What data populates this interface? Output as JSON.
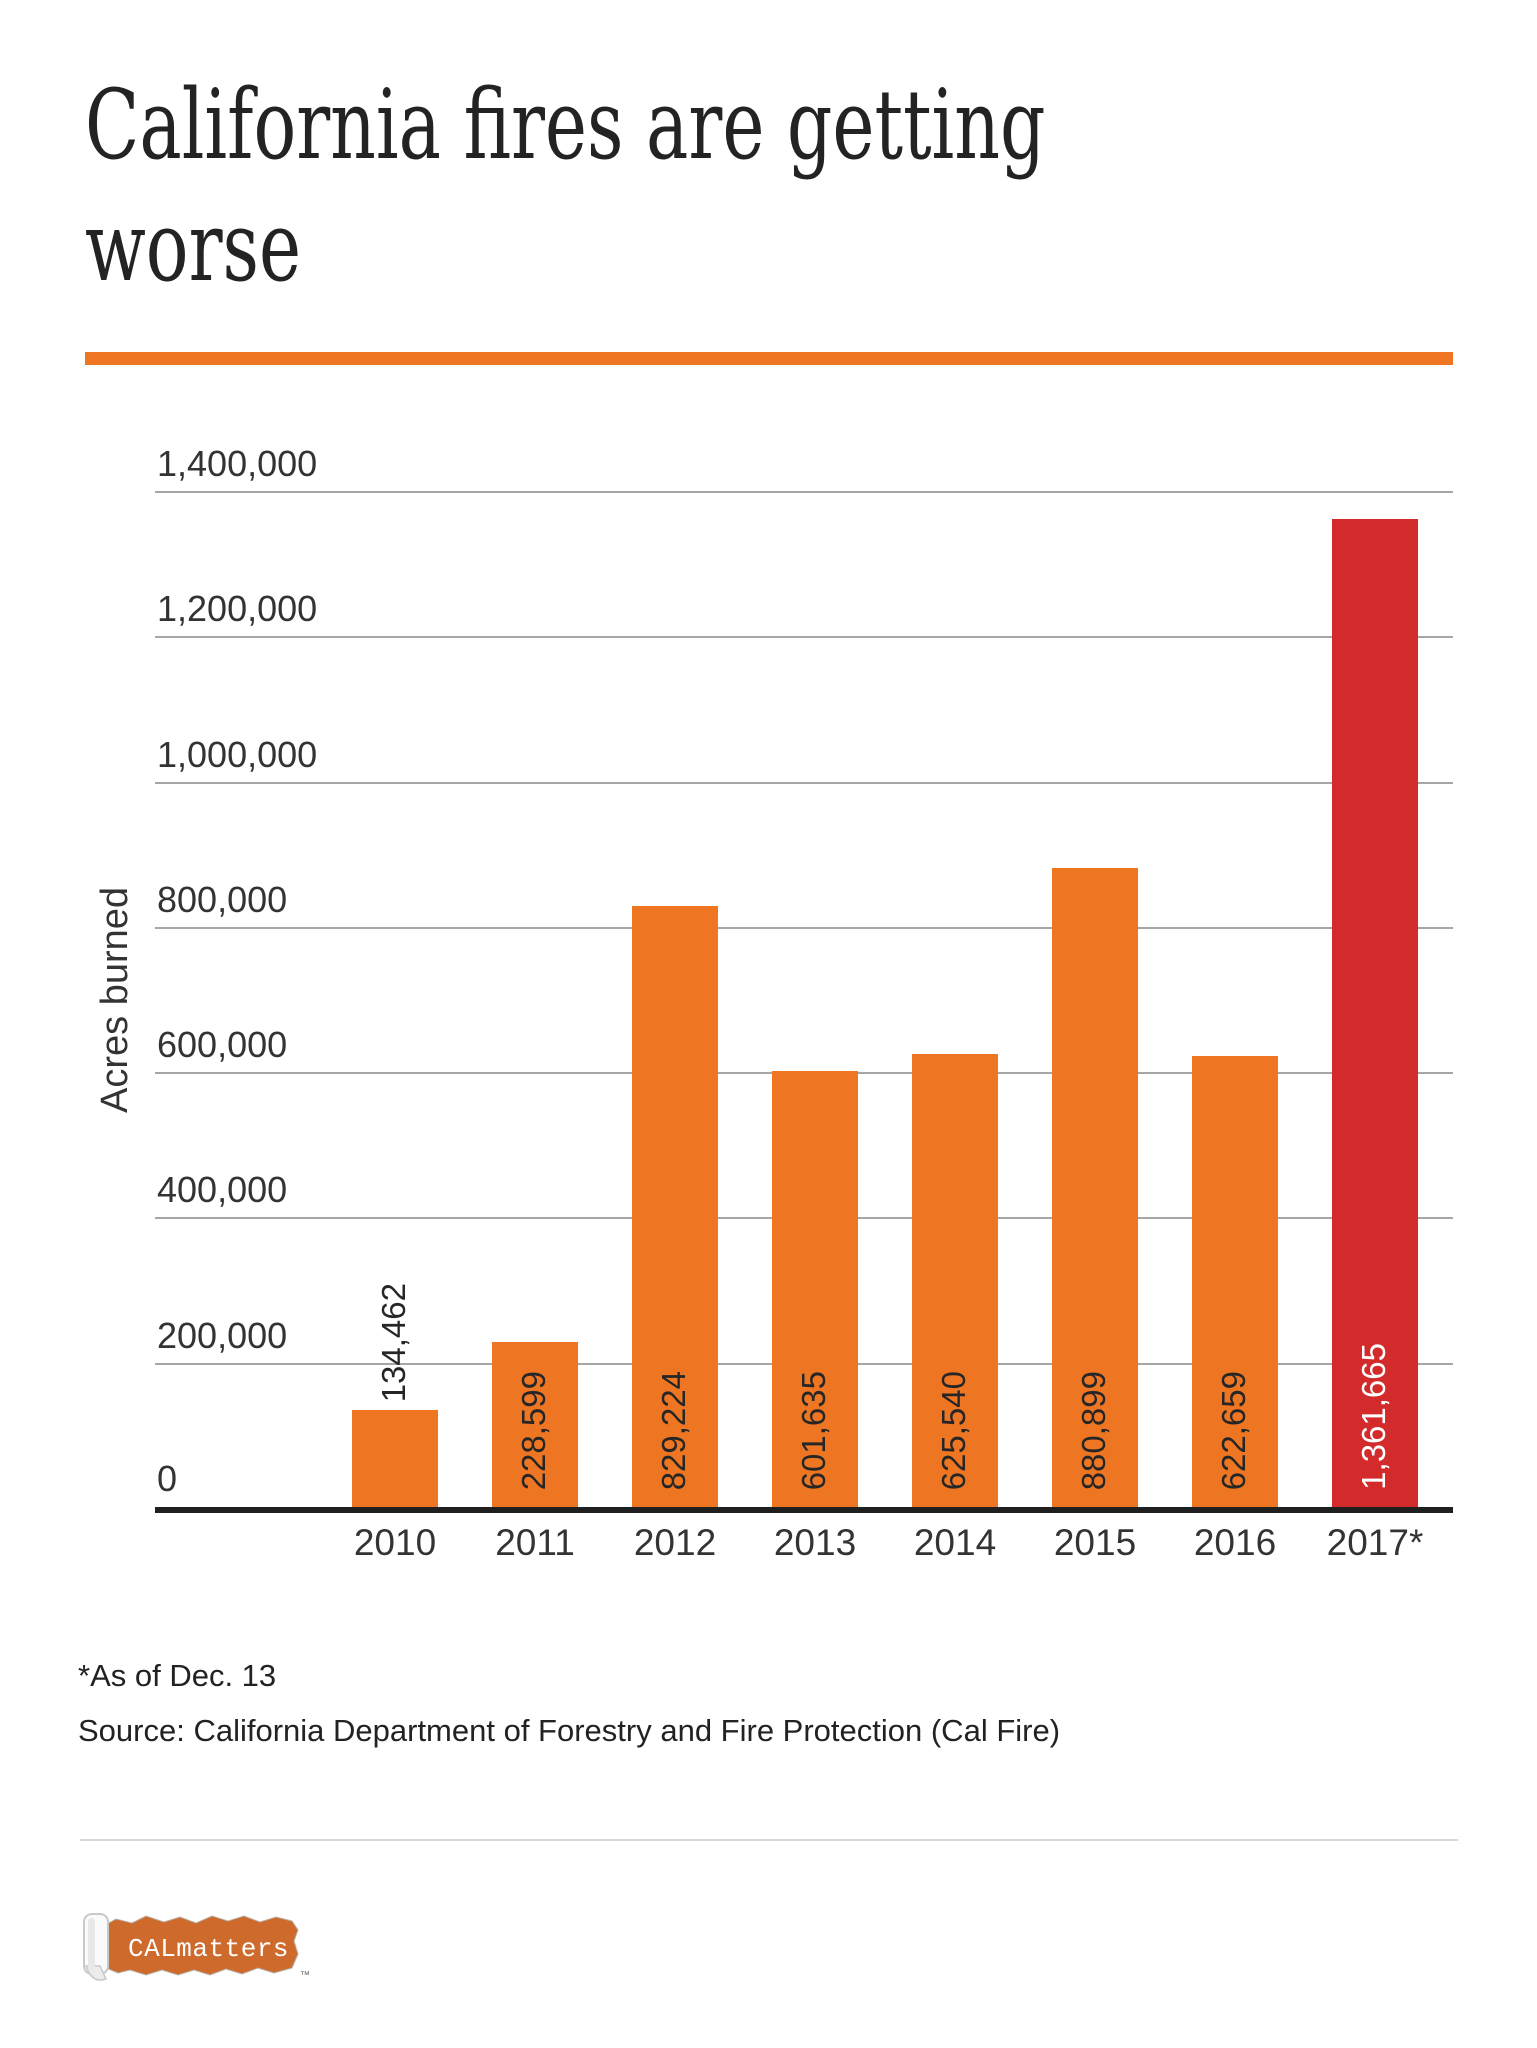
{
  "header": {
    "title": "California fires are getting worse",
    "title_lines": [
      "California fires are getting",
      "worse"
    ]
  },
  "accent_color": "#ee7623",
  "chart_data": {
    "type": "bar",
    "title": "California fires are getting worse",
    "categories": [
      "2010",
      "2011",
      "2012",
      "2013",
      "2014",
      "2015",
      "2016",
      "2017*"
    ],
    "values": [
      134462,
      228599,
      829224,
      601635,
      625540,
      880899,
      622659,
      1361665
    ],
    "value_labels": [
      "134,462",
      "228,599",
      "829,224",
      "601,635",
      "625,540",
      "880,899",
      "622,659",
      "1,361,665"
    ],
    "xlabel": "",
    "ylabel": "Acres burned",
    "ylim": [
      0,
      1400000
    ],
    "ytick_step": 200000,
    "ytick_labels": [
      "0",
      "200,000",
      "400,000",
      "600,000",
      "800,000",
      "1,000,000",
      "1,200,000",
      "1,400,000"
    ],
    "grid": true,
    "legend": "none",
    "bar_color": "#ee7623",
    "highlight_color": "#d32b2b",
    "highlight_index": 7,
    "highlight_label_color": "#ffffff",
    "label_color": "#262626"
  },
  "footnote": "*As of Dec. 13",
  "source": "Source: California Department of Forestry and Fire Protection (Cal Fire)",
  "logo": {
    "text": "CALmatters",
    "tm": "™",
    "banner_color": "#cd6a2c"
  }
}
